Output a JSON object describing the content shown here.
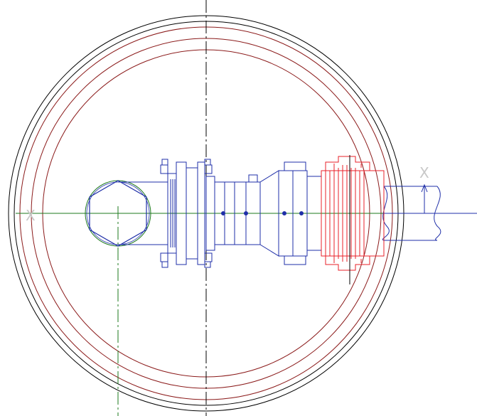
{
  "section_labels": {
    "left": "X",
    "right": "X"
  },
  "colors": {
    "background": "#ffffff",
    "outer_shell": "#000000",
    "inner_rings": "#8b1a1a",
    "assembly": "#1f2fa8",
    "highlighted_flange": "#e8202a",
    "centerline_horizontal": "#1e7a1e",
    "centerline_vertical_left": "#1e7a1e",
    "centerline_vertical_mid": "#000000",
    "section_label": "#c8c8c8"
  }
}
